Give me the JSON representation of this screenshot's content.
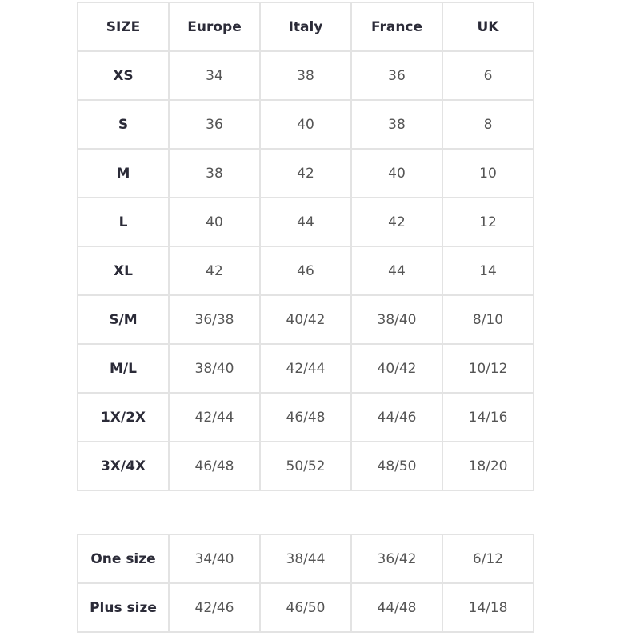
{
  "main_table": {
    "headers": [
      "SIZE",
      "Europe",
      "Italy",
      "France",
      "UK"
    ],
    "rows": [
      [
        "XS",
        "34",
        "38",
        "36",
        "6"
      ],
      [
        "S",
        "36",
        "40",
        "38",
        "8"
      ],
      [
        "M",
        "38",
        "42",
        "40",
        "10"
      ],
      [
        "L",
        "40",
        "44",
        "42",
        "12"
      ],
      [
        "XL",
        "42",
        "46",
        "44",
        "14"
      ],
      [
        "S/M",
        "36/38",
        "40/42",
        "38/40",
        "8/10"
      ],
      [
        "M/L",
        "38/40",
        "42/44",
        "40/42",
        "10/12"
      ],
      [
        "1X/2X",
        "42/44",
        "46/48",
        "44/46",
        "14/16"
      ],
      [
        "3X/4X",
        "46/48",
        "50/52",
        "48/50",
        "18/20"
      ]
    ]
  },
  "extra_table": {
    "rows": [
      [
        "One size",
        "34/40",
        "38/44",
        "36/42",
        "6/12"
      ],
      [
        "Plus size",
        "42/46",
        "46/50",
        "44/48",
        "14/18"
      ]
    ]
  }
}
